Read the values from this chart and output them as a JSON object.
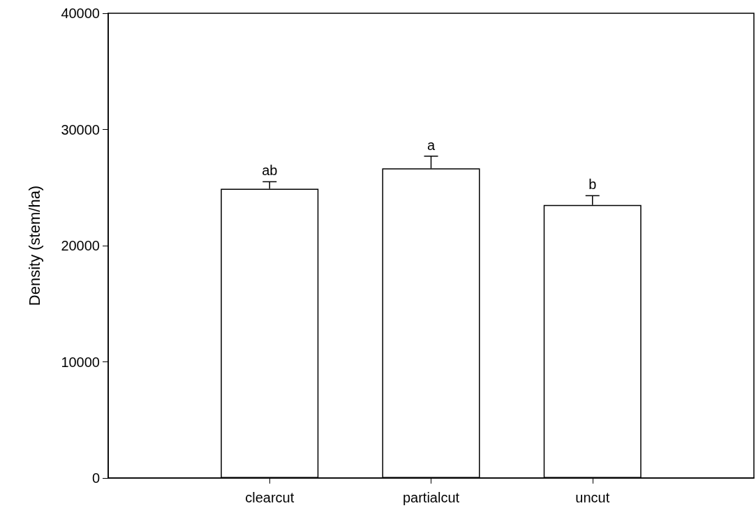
{
  "chart_data": {
    "type": "bar",
    "ylabel": "Density (stem/ha)",
    "categories": [
      null,
      "clearcut",
      "partialcut",
      "uncut",
      null
    ],
    "values": [
      null,
      24900,
      26650,
      23500,
      null
    ],
    "errors": [
      null,
      [
        24900,
        25500
      ],
      [
        26650,
        27700
      ],
      [
        23500,
        24300
      ],
      null
    ],
    "color": "#ffffff",
    "ylim": [
      0,
      40000
    ],
    "yticks": [
      0,
      10000,
      20000,
      30000,
      40000
    ],
    "annotations": [
      {
        "text": "ab",
        "x": "clearcut",
        "y": 25500
      },
      {
        "text": "a",
        "x": "partialcut",
        "y": 27700
      },
      {
        "text": "b",
        "x": "uncut",
        "y": 24300
      }
    ],
    "grid": false
  }
}
